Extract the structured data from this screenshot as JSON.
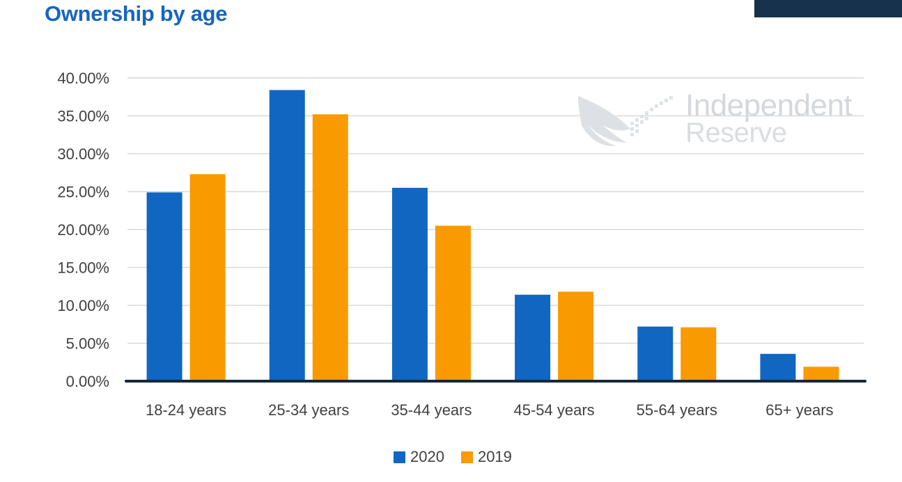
{
  "title": "Ownership by age",
  "colors": {
    "title": "#1565c0",
    "corner_bar": "#17324d",
    "axis_line": "#15293b",
    "grid": "#d9d9d9",
    "series_2020": "#1166c2",
    "series_2019": "#f99a00"
  },
  "watermark": {
    "line1": "Independent",
    "line2": "Reserve",
    "icon": "eagle-wing-logo-icon"
  },
  "chart_data": {
    "type": "bar",
    "categories": [
      "18-24 years",
      "25-34 years",
      "35-44 years",
      "45-54 years",
      "55-64 years",
      "65+ years"
    ],
    "series": [
      {
        "name": "2020",
        "values": [
          24.9,
          38.4,
          25.5,
          11.4,
          7.2,
          3.6
        ]
      },
      {
        "name": "2019",
        "values": [
          27.3,
          35.2,
          20.5,
          11.8,
          7.1,
          1.9
        ]
      }
    ],
    "ylim": [
      0,
      40
    ],
    "yticks": [
      0,
      5,
      10,
      15,
      20,
      25,
      30,
      35,
      40
    ],
    "ytick_labels": [
      "0.00%",
      "5.00%",
      "10.00%",
      "15.00%",
      "20.00%",
      "25.00%",
      "30.00%",
      "35.00%",
      "40.00%"
    ],
    "grid": true,
    "legend": "bottom-center"
  }
}
